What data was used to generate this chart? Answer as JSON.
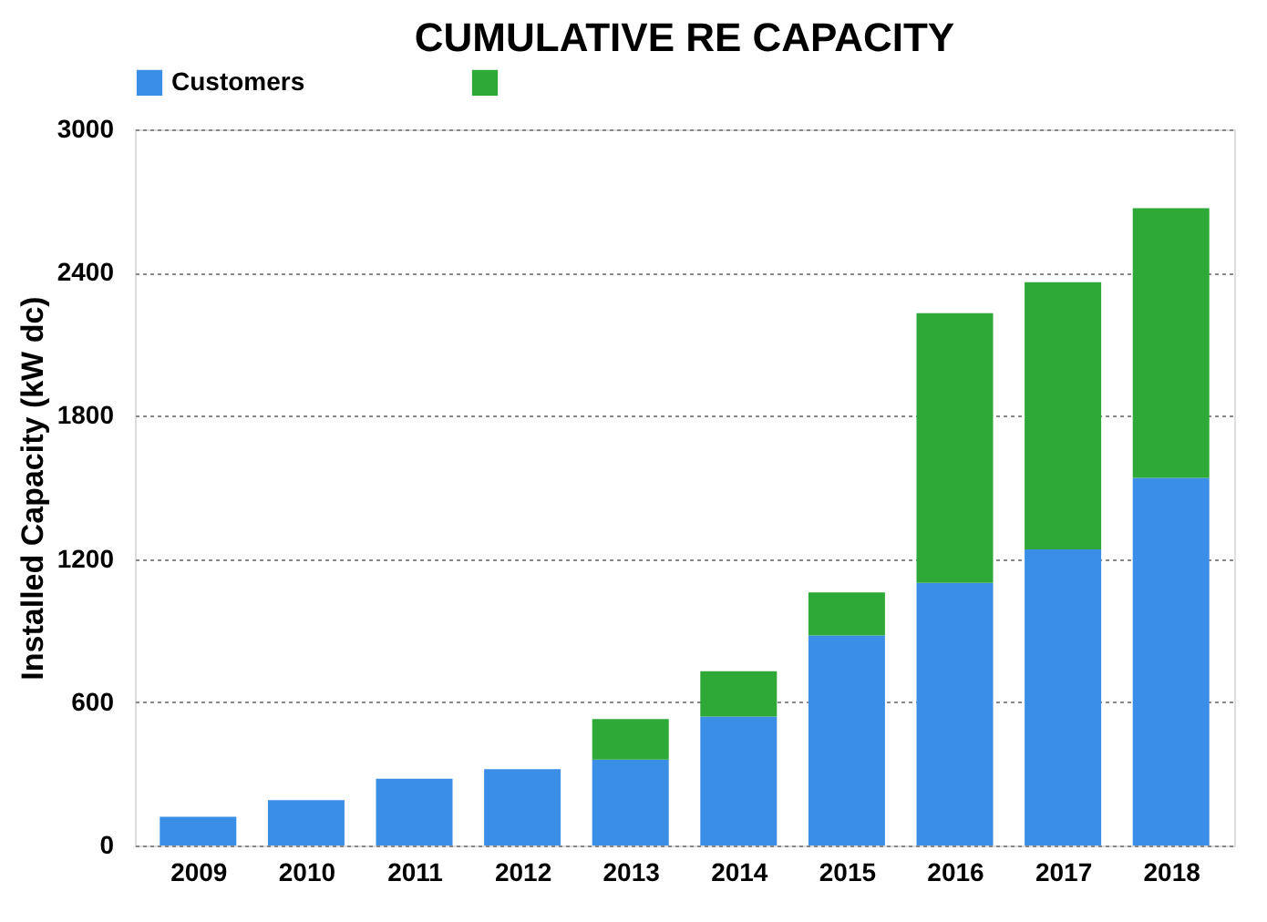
{
  "chart_data": {
    "type": "bar",
    "title": "CUMULATIVE RE CAPACITY",
    "ylabel": "Installed Capacity (kW dc)",
    "categories": [
      "2009",
      "2010",
      "2011",
      "2012",
      "2013",
      "2014",
      "2015",
      "2016",
      "2017",
      "2018"
    ],
    "series": [
      {
        "name": "Customers",
        "color": "#3a8ee6",
        "values": [
          120,
          190,
          280,
          320,
          360,
          540,
          880,
          1100,
          1240,
          1540
        ]
      },
      {
        "color": "#2ea836",
        "values": [
          null,
          null,
          null,
          null,
          170,
          190,
          180,
          1130,
          1120,
          1130
        ]
      }
    ],
    "stacked": true,
    "ylim": [
      0,
      3000
    ],
    "yticks": [
      0,
      600,
      1200,
      1800,
      2400,
      3000
    ],
    "grid": "y",
    "legend": "top"
  }
}
